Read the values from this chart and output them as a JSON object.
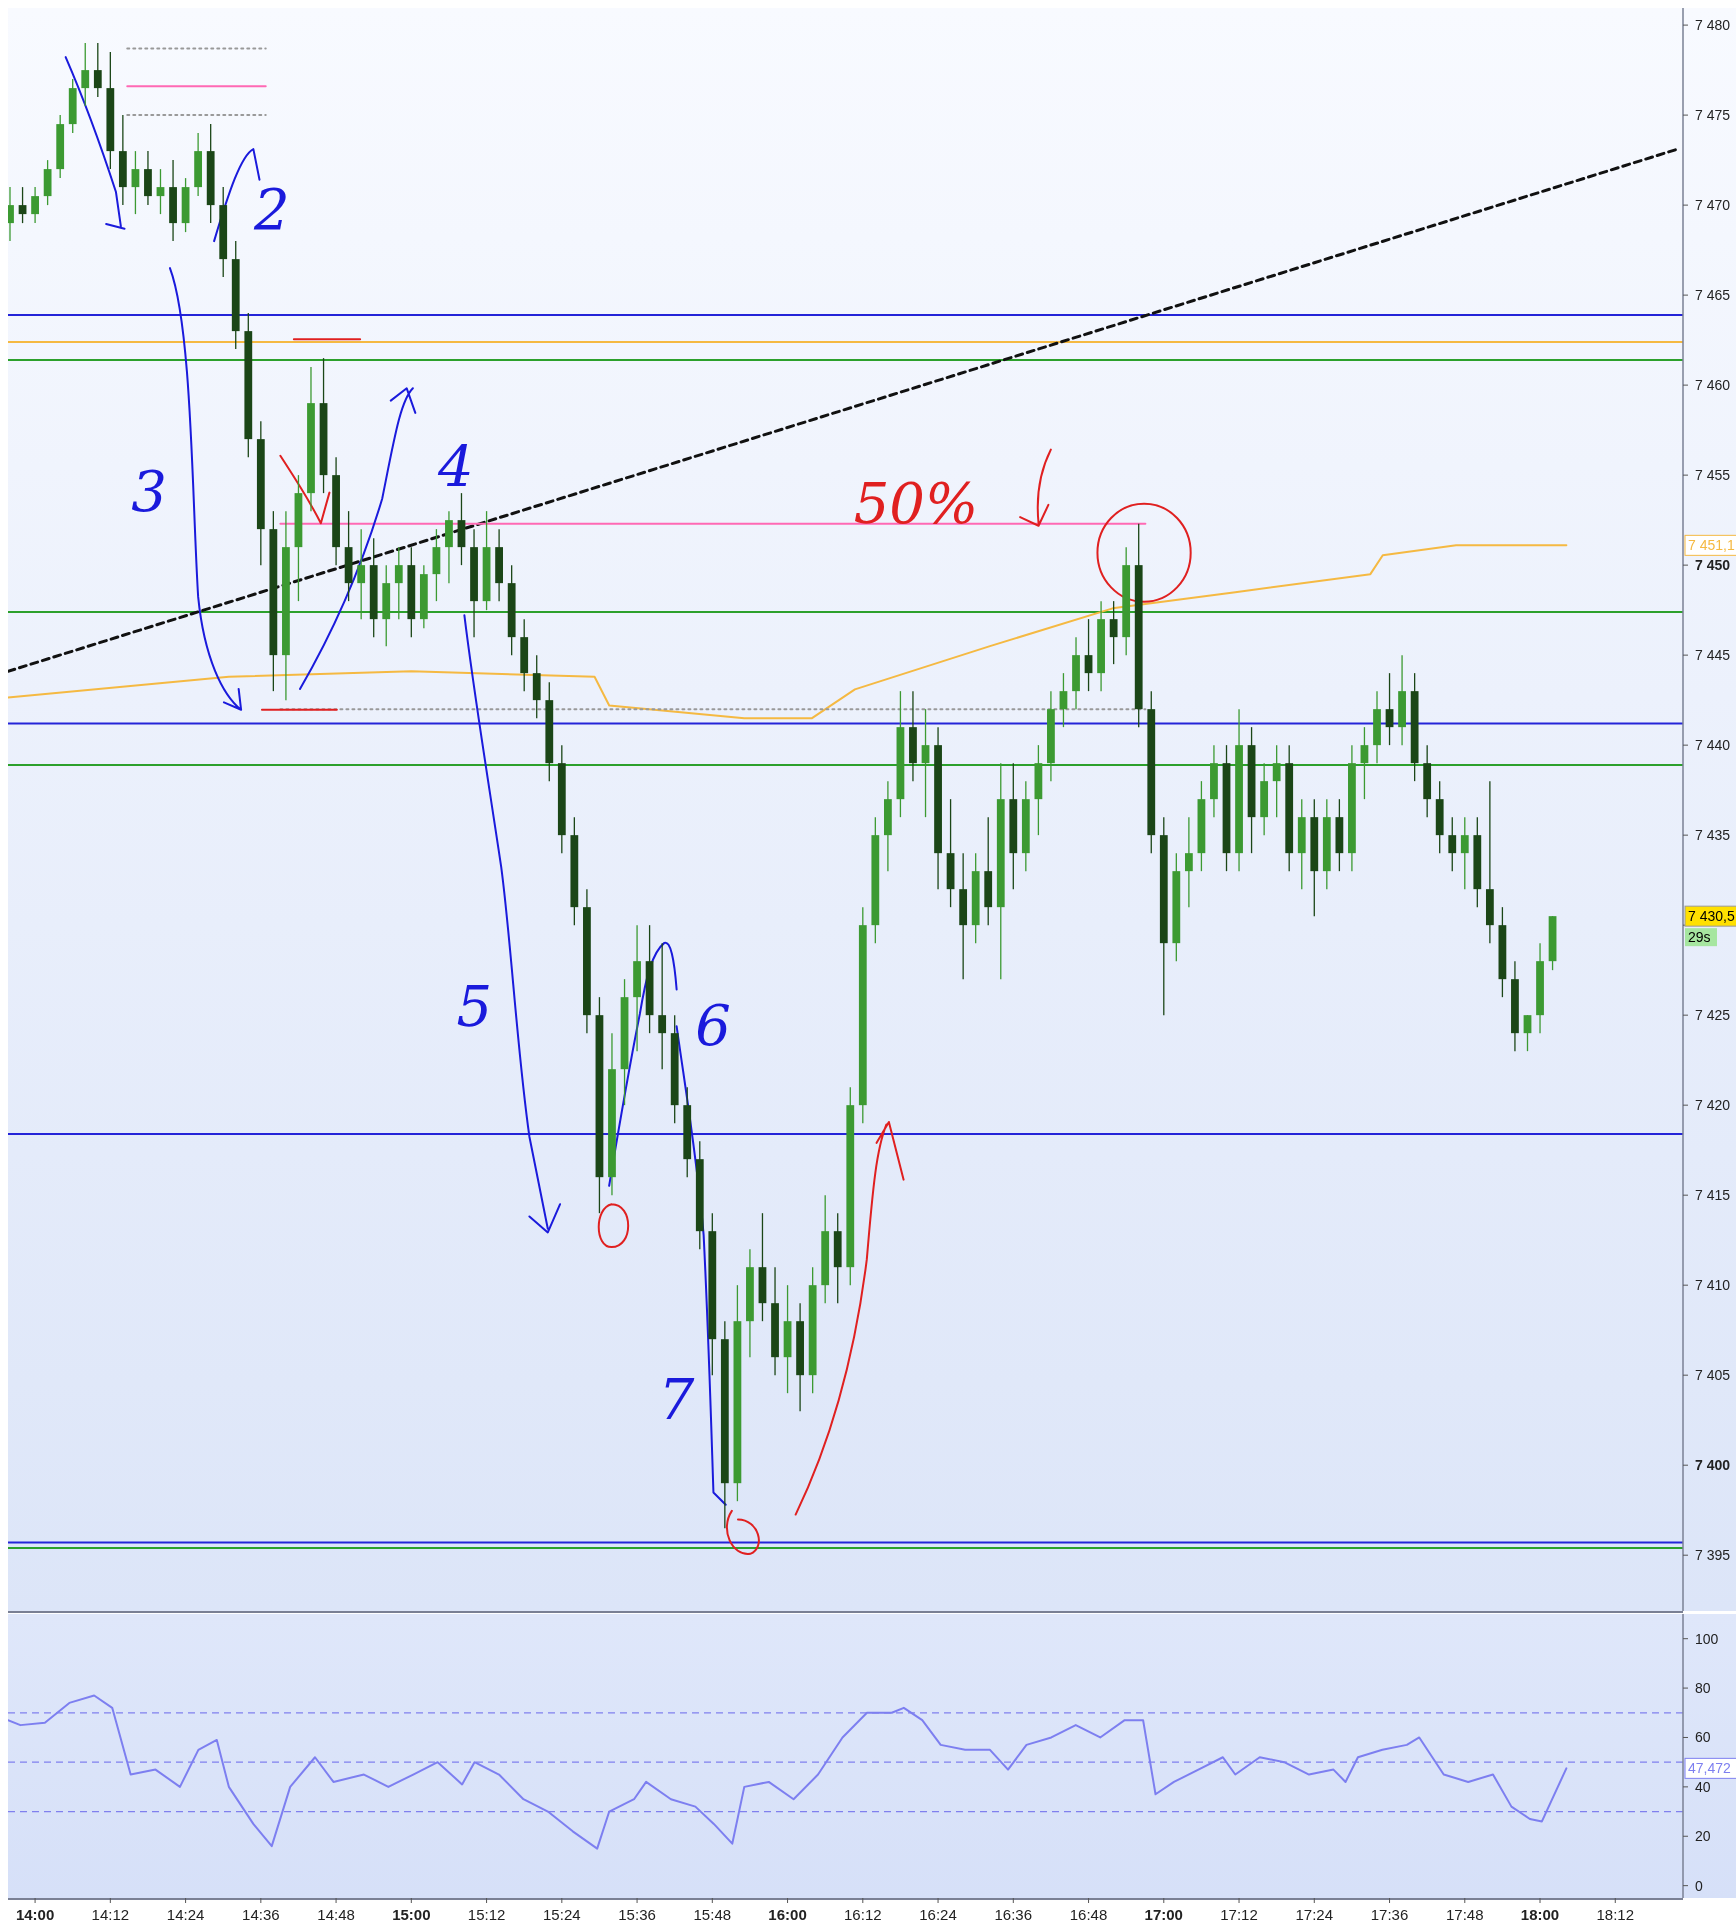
{
  "chart_data": [
    {
      "type": "candlestick",
      "xlim": [
        13.928,
        18.38
      ],
      "ylim": [
        7391.9,
        7480.95
      ],
      "tick_labels": "y",
      "grid": false,
      "yticks": [
        {
          "value": 7395,
          "label": "7 395"
        },
        {
          "value": 7400,
          "label": "7 400"
        },
        {
          "value": 7405,
          "label": "7 405"
        },
        {
          "value": 7410,
          "label": "7 410"
        },
        {
          "value": 7415,
          "label": "7 415"
        },
        {
          "value": 7420,
          "label": "7 420"
        },
        {
          "value": 7425,
          "label": "7 425"
        },
        {
          "value": 7430,
          "label": null
        },
        {
          "value": 7435,
          "label": "7 435"
        },
        {
          "value": 7440,
          "label": "7 440"
        },
        {
          "value": 7445,
          "label": "7 445"
        },
        {
          "value": 7450,
          "label": "7 450"
        },
        {
          "value": 7455,
          "label": "7 455"
        },
        {
          "value": 7460,
          "label": "7 460"
        },
        {
          "value": 7465,
          "label": "7 465"
        },
        {
          "value": 7470,
          "label": "7 470"
        },
        {
          "value": 7475,
          "label": "7 475"
        },
        {
          "value": 7480,
          "label": "7 480"
        }
      ],
      "ref_lines": [
        {
          "axis": "y",
          "value": 7463.9,
          "color": "#2424d8",
          "line_style": "solid"
        },
        {
          "axis": "y",
          "value": 7462.4,
          "color": "#f5b942",
          "line_style": "solid"
        },
        {
          "axis": "y",
          "value": 7461.4,
          "color": "#2ca02c",
          "line_style": "solid"
        },
        {
          "axis": "y",
          "value": 7447.4,
          "color": "#2ca02c",
          "line_style": "solid"
        },
        {
          "axis": "y",
          "value": 7441.2,
          "color": "#2424d8",
          "line_style": "solid"
        },
        {
          "axis": "y",
          "value": 7438.9,
          "color": "#2ca02c",
          "line_style": "solid"
        },
        {
          "axis": "y",
          "value": 7418.4,
          "color": "#2424d8",
          "line_style": "solid"
        },
        {
          "axis": "y",
          "value": 7395.7,
          "color": "#2424d8",
          "line_style": "solid"
        },
        {
          "axis": "y",
          "value": 7395.4,
          "color": "#2ca02c",
          "line_style": "solid"
        }
      ],
      "annotations": [
        "2",
        "3",
        "4",
        "5",
        {
          "text": "6",
          "x": 15.6,
          "y": 7430
        },
        "7",
        "50%",
        "7 451,1",
        "7 430,5",
        "29s"
      ],
      "series": [
        {
          "type": "line",
          "color": "#f5b942",
          "line_style": "solid",
          "x": [
            13.928,
            14.515,
            15.0,
            15.487,
            15.526,
            15.885,
            16.065,
            16.179,
            16.538,
            16.864,
            17.19,
            17.549,
            17.582,
            17.777,
            18.07
          ],
          "values": [
            7442.65,
            7443.8,
            7444.1,
            7443.8,
            7442.2,
            7441.5,
            7441.5,
            7443.1,
            7445.5,
            7447.6,
            7448.5,
            7449.5,
            7450.55,
            7451.1,
            7451.1
          ]
        },
        {
          "type": "line",
          "color": "#111111",
          "line_style": "dashed",
          "x": [
            13.928,
            18.364
          ],
          "values": [
            7444.1,
            7473.1
          ]
        },
        {
          "type": "line",
          "color": "#ff69b4",
          "line_style": "solid",
          "x": [
            14.245,
            14.613
          ],
          "values": [
            7476.6,
            7476.6
          ]
        },
        {
          "type": "line",
          "color": "#999999",
          "line_style": "dotted",
          "x": [
            14.245,
            14.613
          ],
          "values": [
            7478.7,
            7478.7
          ]
        },
        {
          "type": "line",
          "color": "#999999",
          "line_style": "dotted",
          "x": [
            14.245,
            14.613
          ],
          "values": [
            7475,
            7475
          ]
        },
        {
          "type": "line",
          "color": "#ff69b4",
          "line_style": "solid",
          "x": [
            14.652,
            16.951
          ],
          "values": [
            7452.3,
            7452.3
          ]
        },
        {
          "type": "line",
          "color": "#999999",
          "line_style": "dotted",
          "x": [
            14.652,
            16.951
          ],
          "values": [
            7442,
            7442
          ]
        },
        {
          "colors": [
            "#3c9a32",
            "#1b4617",
            "#3c9a32",
            "#3c9a32",
            "#3c9a32",
            "#3c9a32",
            "#3c9a32",
            "#1b4617",
            "#1b4617",
            "#1b4617",
            "#3c9a32",
            "#1b4617",
            "#3c9a32",
            "#1b4617",
            "#3c9a32",
            "#3c9a32",
            "#1b4617",
            "#1b4617",
            "#1b4617",
            "#1b4617",
            "#1b4617",
            "#1b4617",
            "#3c9a32",
            "#3c9a32",
            "#3c9a32",
            "#1b4617",
            "#1b4617",
            "#1b4617",
            "#3c9a32",
            "#1b4617",
            "#3c9a32",
            "#3c9a32",
            "#1b4617",
            "#3c9a32",
            "#3c9a32",
            "#3c9a32",
            "#1b4617",
            "#1b4617",
            "#3c9a32",
            "#1b4617",
            "#1b4617",
            "#1b4617",
            "#1b4617",
            "#1b4617",
            "#1b4617",
            "#1b4617",
            "#1b4617",
            "#1b4617",
            "#3c9a32",
            "#3c9a32",
            "#3c9a32",
            "#1b4617",
            "#1b4617",
            "#1b4617",
            "#1b4617",
            "#1b4617",
            "#1b4617",
            "#1b4617",
            "#3c9a32",
            "#3c9a32",
            "#1b4617",
            "#1b4617",
            "#3c9a32",
            "#1b4617",
            "#3c9a32",
            "#3c9a32",
            "#1b4617",
            "#3c9a32",
            "#3c9a32",
            "#3c9a32",
            "#3c9a32",
            "#3c9a32",
            "#1b4617",
            "#3c9a32",
            "#1b4617",
            "#1b4617",
            "#1b4617",
            "#3c9a32",
            "#1b4617",
            "#3c9a32",
            "#1b4617",
            "#3c9a32",
            "#3c9a32",
            "#3c9a32",
            "#3c9a32",
            "#3c9a32",
            "#1b4617",
            "#3c9a32",
            "#1b4617",
            "#3c9a32",
            "#1b4617",
            "#1b4617",
            "#1b4617",
            "#3c9a32",
            "#3c9a32",
            "#3c9a32",
            "#3c9a32",
            "#1b4617",
            "#3c9a32",
            "#1b4617",
            "#3c9a32",
            "#3c9a32",
            "#1b4617",
            "#3c9a32",
            "#1b4617",
            "#3c9a32",
            "#1b4617",
            "#3c9a32",
            "#3c9a32",
            "#3c9a32",
            "#1b4617",
            "#3c9a32",
            "#1b4617",
            "#1b4617",
            "#1b4617",
            "#1b4617",
            "#3c9a32",
            "#1b4617",
            "#1b4617",
            "#1b4617",
            "#1b4617",
            "#3c9a32",
            "#3c9a32",
            "#3c9a32"
          ],
          "x": [
            13.9333,
            13.9667,
            14.0,
            14.0333,
            14.0667,
            14.1,
            14.1333,
            14.1667,
            14.2,
            14.2333,
            14.2667,
            14.3,
            14.3333,
            14.3667,
            14.4,
            14.4333,
            14.4667,
            14.5,
            14.5333,
            14.5667,
            14.6,
            14.6333,
            14.6667,
            14.7,
            14.7333,
            14.7667,
            14.8,
            14.8333,
            14.8667,
            14.9,
            14.9333,
            14.9667,
            15.0,
            15.0333,
            15.0667,
            15.1,
            15.1333,
            15.1667,
            15.2,
            15.2333,
            15.2667,
            15.3,
            15.3333,
            15.3667,
            15.4,
            15.4333,
            15.4667,
            15.5,
            15.5333,
            15.5667,
            15.6,
            15.6333,
            15.6667,
            15.7,
            15.7333,
            15.7667,
            15.8,
            15.8333,
            15.8667,
            15.9,
            15.9333,
            15.9667,
            16.0,
            16.0333,
            16.0667,
            16.1,
            16.1333,
            16.1667,
            16.2,
            16.2333,
            16.2667,
            16.3,
            16.3333,
            16.3667,
            16.4,
            16.4333,
            16.4667,
            16.5,
            16.5333,
            16.5667,
            16.6,
            16.6333,
            16.6667,
            16.7,
            16.7333,
            16.7667,
            16.8,
            16.8333,
            16.8667,
            16.9,
            16.9333,
            16.9667,
            17.0,
            17.0333,
            17.0667,
            17.1,
            17.1333,
            17.1667,
            17.2,
            17.2333,
            17.2667,
            17.3,
            17.3333,
            17.3667,
            17.4,
            17.4333,
            17.4667,
            17.5,
            17.5333,
            17.5667,
            17.6,
            17.6333,
            17.6667,
            17.7,
            17.7333,
            17.7667,
            17.8,
            17.8333,
            17.8667,
            17.9,
            17.9333,
            17.9667,
            18.0,
            18.0333
          ],
          "ohlc": [
            [
              7469,
              7471,
              7468,
              7470
            ],
            [
              7470,
              7471,
              7469,
              7469.5
            ],
            [
              7469.5,
              7471,
              7469,
              7470.5
            ],
            [
              7470.5,
              7472.5,
              7470,
              7472
            ],
            [
              7472,
              7475,
              7471.5,
              7474.5
            ],
            [
              7474.5,
              7477,
              7474,
              7476.5
            ],
            [
              7476.5,
              7479,
              7475.5,
              7477.5
            ],
            [
              7477.5,
              7479,
              7476,
              7476.5
            ],
            [
              7476.5,
              7478.5,
              7472,
              7473
            ],
            [
              7473,
              7475,
              7470,
              7471
            ],
            [
              7471,
              7473,
              7469.5,
              7472
            ],
            [
              7472,
              7473,
              7470,
              7470.5
            ],
            [
              7470.5,
              7472,
              7469.5,
              7471
            ],
            [
              7471,
              7472.5,
              7468,
              7469
            ],
            [
              7469,
              7471.5,
              7468.5,
              7471
            ],
            [
              7471,
              7474,
              7470.5,
              7473
            ],
            [
              7473,
              7474.5,
              7469,
              7470
            ],
            [
              7470,
              7471,
              7466,
              7467
            ],
            [
              7467,
              7468,
              7462,
              7463
            ],
            [
              7463,
              7464,
              7456,
              7457
            ],
            [
              7457,
              7458,
              7450,
              7452
            ],
            [
              7452,
              7453,
              7443,
              7445
            ],
            [
              7445,
              7453,
              7442.5,
              7451
            ],
            [
              7451,
              7455,
              7448,
              7454
            ],
            [
              7454,
              7461,
              7453,
              7459
            ],
            [
              7459,
              7461.5,
              7454,
              7455
            ],
            [
              7455,
              7456,
              7450,
              7451
            ],
            [
              7451,
              7453,
              7448,
              7449
            ],
            [
              7449,
              7452,
              7447,
              7450
            ],
            [
              7450,
              7451.5,
              7446,
              7447
            ],
            [
              7447,
              7450,
              7445.5,
              7449
            ],
            [
              7449,
              7451,
              7447,
              7450
            ],
            [
              7450,
              7451,
              7446,
              7447
            ],
            [
              7447,
              7450,
              7446.5,
              7449.5
            ],
            [
              7449.5,
              7452,
              7448,
              7451
            ],
            [
              7451,
              7453,
              7449,
              7452.5
            ],
            [
              7452.5,
              7454,
              7450,
              7451
            ],
            [
              7451,
              7452,
              7446,
              7448
            ],
            [
              7448,
              7453,
              7447.5,
              7451
            ],
            [
              7451,
              7452,
              7448,
              7449
            ],
            [
              7449,
              7450,
              7445,
              7446
            ],
            [
              7446,
              7447,
              7443,
              7444
            ],
            [
              7444,
              7445,
              7441.5,
              7442.5
            ],
            [
              7442.5,
              7443.5,
              7438,
              7439
            ],
            [
              7439,
              7440,
              7434,
              7435
            ],
            [
              7435,
              7436,
              7430,
              7431
            ],
            [
              7431,
              7432,
              7424,
              7425
            ],
            [
              7425,
              7426,
              7414,
              7416
            ],
            [
              7416,
              7424,
              7415,
              7422
            ],
            [
              7422,
              7427,
              7420,
              7426
            ],
            [
              7426,
              7430,
              7423,
              7428
            ],
            [
              7428,
              7430,
              7424,
              7425
            ],
            [
              7425,
              7429,
              7422,
              7424
            ],
            [
              7424,
              7425,
              7419,
              7420
            ],
            [
              7420,
              7421,
              7416,
              7417
            ],
            [
              7417,
              7418,
              7412,
              7413
            ],
            [
              7413,
              7414,
              7405,
              7407
            ],
            [
              7407,
              7408,
              7396.5,
              7399
            ],
            [
              7399,
              7410,
              7398,
              7408
            ],
            [
              7408,
              7412,
              7406,
              7411
            ],
            [
              7411,
              7414,
              7408,
              7409
            ],
            [
              7409,
              7411,
              7405,
              7406
            ],
            [
              7406,
              7410,
              7404,
              7408
            ],
            [
              7408,
              7409,
              7403,
              7405
            ],
            [
              7405,
              7411,
              7404,
              7410
            ],
            [
              7410,
              7415,
              7409,
              7413
            ],
            [
              7413,
              7414,
              7409,
              7411
            ],
            [
              7411,
              7421,
              7410,
              7420
            ],
            [
              7420,
              7431,
              7419,
              7430
            ],
            [
              7430,
              7436,
              7429,
              7435
            ],
            [
              7435,
              7438,
              7433,
              7437
            ],
            [
              7437,
              7443,
              7436,
              7441
            ],
            [
              7441,
              7443,
              7438,
              7439
            ],
            [
              7439,
              7442,
              7436,
              7440
            ],
            [
              7440,
              7441,
              7432,
              7434
            ],
            [
              7434,
              7437,
              7431,
              7432
            ],
            [
              7432,
              7434,
              7427,
              7430
            ],
            [
              7430,
              7434,
              7429,
              7433
            ],
            [
              7433,
              7436,
              7430,
              7431
            ],
            [
              7431,
              7439,
              7427,
              7437
            ],
            [
              7437,
              7439,
              7432,
              7434
            ],
            [
              7434,
              7438,
              7433,
              7437
            ],
            [
              7437,
              7440,
              7435,
              7439
            ],
            [
              7439,
              7443,
              7438,
              7442
            ],
            [
              7442,
              7444,
              7441,
              7443
            ],
            [
              7443,
              7446,
              7442,
              7445
            ],
            [
              7445,
              7447,
              7443,
              7444
            ],
            [
              7444,
              7448,
              7443,
              7447
            ],
            [
              7447,
              7448,
              7444.5,
              7446
            ],
            [
              7446,
              7451,
              7445,
              7450
            ],
            [
              7450,
              7452.3,
              7441,
              7442
            ],
            [
              7442,
              7443,
              7434,
              7435
            ],
            [
              7435,
              7436,
              7425,
              7429
            ],
            [
              7429,
              7434,
              7428,
              7433
            ],
            [
              7433,
              7436,
              7431,
              7434
            ],
            [
              7434,
              7438,
              7433,
              7437
            ],
            [
              7437,
              7440,
              7436,
              7439
            ],
            [
              7439,
              7440,
              7433,
              7434
            ],
            [
              7434,
              7442,
              7433,
              7440
            ],
            [
              7440,
              7441,
              7434,
              7436
            ],
            [
              7436,
              7439,
              7435,
              7438
            ],
            [
              7438,
              7440,
              7436,
              7439
            ],
            [
              7439,
              7440,
              7433,
              7434
            ],
            [
              7434,
              7437,
              7432,
              7436
            ],
            [
              7436,
              7437,
              7430.5,
              7433
            ],
            [
              7433,
              7437,
              7432,
              7436
            ],
            [
              7436,
              7437,
              7433,
              7434
            ],
            [
              7434,
              7440,
              7433,
              7439
            ],
            [
              7439,
              7441,
              7437,
              7440
            ],
            [
              7440,
              7443,
              7439,
              7442
            ],
            [
              7442,
              7444,
              7440,
              7441
            ],
            [
              7441,
              7445,
              7440,
              7443
            ],
            [
              7443,
              7444,
              7438,
              7439
            ],
            [
              7439,
              7440,
              7436,
              7437
            ],
            [
              7437,
              7438,
              7434,
              7435
            ],
            [
              7435,
              7436,
              7433,
              7434
            ],
            [
              7434,
              7436,
              7432,
              7435
            ],
            [
              7435,
              7436,
              7431,
              7432
            ],
            [
              7432,
              7438,
              7429,
              7430
            ],
            [
              7430,
              7431,
              7426,
              7427
            ],
            [
              7427,
              7428,
              7423,
              7424
            ],
            [
              7424,
              7425,
              7423,
              7425
            ],
            [
              7425,
              7429,
              7424,
              7428
            ],
            [
              7428,
              7430.5,
              7427.5,
              7430.5
            ]
          ]
        }
      ]
    },
    {
      "type": "line",
      "xlim": [
        13.928,
        18.38
      ],
      "ylim": [
        -5,
        110
      ],
      "yticks": [
        0,
        20,
        40,
        60,
        80,
        100
      ],
      "grid": false,
      "xticks": [
        {
          "value": 14,
          "label": "14:00"
        },
        {
          "value": 14.2,
          "label": "14:12"
        },
        {
          "value": 14.4,
          "label": "14:24"
        },
        {
          "value": 14.6,
          "label": "14:36"
        },
        {
          "value": 14.8,
          "label": "14:48"
        },
        {
          "value": 15,
          "label": "15:00"
        },
        {
          "value": 15.2,
          "label": "15:12"
        },
        {
          "value": 15.4,
          "label": "15:24"
        },
        {
          "value": 15.6,
          "label": "15:36"
        },
        {
          "value": 15.8,
          "label": "15:48"
        },
        {
          "value": 16,
          "label": "16:00"
        },
        {
          "value": 16.2,
          "label": "16:12"
        },
        {
          "value": 16.4,
          "label": "16:24"
        },
        {
          "value": 16.6,
          "label": "16:36"
        },
        {
          "value": 16.8,
          "label": "16:48"
        },
        {
          "value": 17,
          "label": "17:00"
        },
        {
          "value": 17.2,
          "label": "17:12"
        },
        {
          "value": 17.4,
          "label": "17:24"
        },
        {
          "value": 17.6,
          "label": "17:36"
        },
        {
          "value": 17.8,
          "label": "17:48"
        },
        {
          "value": 18,
          "label": "18:00"
        },
        {
          "value": 18.2,
          "label": "18:12"
        }
      ],
      "ref_lines": [
        {
          "axis": "y",
          "value": 70,
          "color": "#8080ee",
          "line_style": "dashed"
        },
        {
          "axis": "y",
          "value": 50,
          "color": "#8080ee",
          "line_style": "dashed"
        },
        {
          "axis": "y",
          "value": 30,
          "color": "#8080ee",
          "line_style": "dashed"
        }
      ],
      "annotations": [
        "47,472"
      ],
      "series": [
        {
          "color": "#7d7ff0",
          "line_style": "solid",
          "x": [
            13.928,
            13.961,
            14.026,
            14.091,
            14.157,
            14.205,
            14.254,
            14.32,
            14.385,
            14.434,
            14.483,
            14.515,
            14.58,
            14.629,
            14.678,
            14.744,
            14.793,
            14.874,
            14.939,
            15.005,
            15.07,
            15.135,
            15.168,
            15.233,
            15.298,
            15.363,
            15.429,
            15.494,
            15.526,
            15.592,
            15.624,
            15.69,
            15.755,
            15.804,
            15.853,
            15.885,
            15.95,
            16.016,
            16.081,
            16.146,
            16.211,
            16.277,
            16.309,
            16.358,
            16.407,
            16.472,
            16.538,
            16.586,
            16.635,
            16.701,
            16.766,
            16.831,
            16.896,
            16.945,
            16.978,
            17.027,
            17.092,
            17.157,
            17.19,
            17.255,
            17.32,
            17.386,
            17.451,
            17.483,
            17.516,
            17.581,
            17.646,
            17.679,
            17.744,
            17.809,
            17.875,
            17.924,
            17.973,
            18.005,
            18.07
          ],
          "values": [
            67,
            65,
            66,
            74,
            77,
            72,
            45,
            47,
            40,
            55,
            59,
            40,
            25,
            16,
            40,
            52,
            42,
            45,
            40,
            45,
            50,
            41,
            50,
            45,
            35,
            30,
            22,
            15,
            30,
            35,
            42,
            35,
            32,
            25,
            17,
            40,
            42,
            35,
            45,
            60,
            70,
            70,
            72,
            67,
            57,
            55,
            55,
            47,
            57,
            60,
            65,
            60,
            67,
            67,
            37,
            42,
            47,
            52,
            45,
            52,
            50,
            45,
            47,
            42,
            52,
            55,
            57,
            60,
            45,
            42,
            45,
            32,
            27,
            26,
            47.5
          ]
        }
      ]
    }
  ]
}
